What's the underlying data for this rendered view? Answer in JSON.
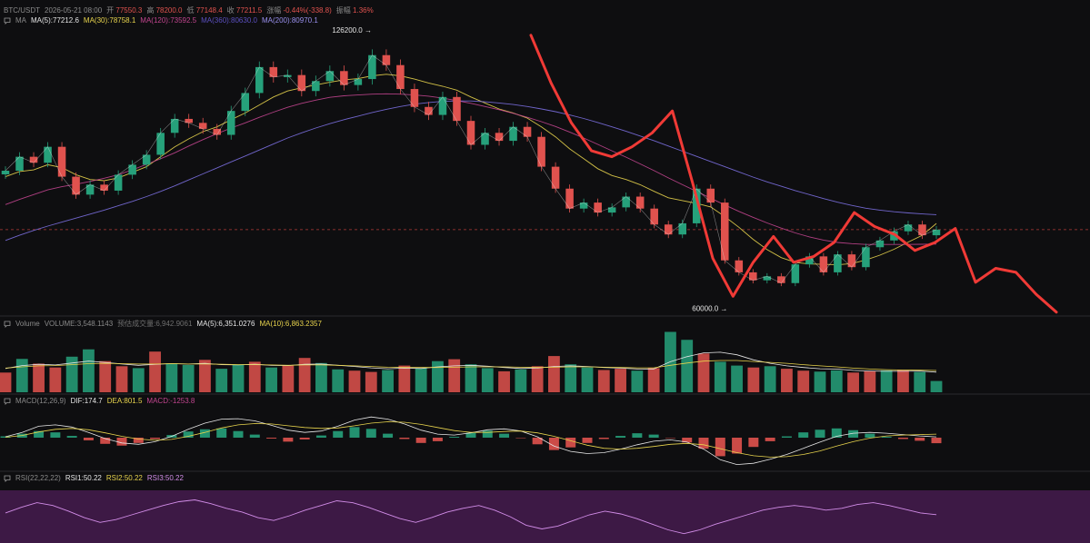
{
  "header": {
    "symbol": "BTC/USDT",
    "datetime": "2026-05-21 08:00",
    "open_label": "开",
    "open": "77550.3",
    "high_label": "高",
    "high": "78200.0",
    "low_label": "低",
    "low": "77148.4",
    "close_label": "收",
    "close": "77211.5",
    "change_label": "涨幅",
    "change": "-0.44%(-338.8)",
    "amp_label": "振幅",
    "amp": "1.36%"
  },
  "ma_legend": {
    "label": "MA",
    "ma5": "MA(5):77212.6",
    "ma30": "MA(30):78758.1",
    "ma120": "MA(120):73592.5",
    "ma360": "MA(360):80630.0",
    "ma200": "MA(200):80970.1"
  },
  "volume_legend": {
    "label": "Volume",
    "volume": "VOLUME:3,548.1143",
    "est": "预估成交量:6,942.9061",
    "ma5": "MA(5):6,351.0276",
    "ma10": "MA(10):6,863.2357"
  },
  "macd_legend": {
    "label": "MACD(12,26,9)",
    "dif": "DIF:174.7",
    "dea": "DEA:801.5",
    "macd": "MACD:-1253.8"
  },
  "rsi_legend": {
    "label": "RSI(22,22,22)",
    "rsi1": "RSI1:50.22",
    "rsi2": "RSI2:50.22",
    "rsi3": "RSI3:50.22"
  },
  "colors": {
    "background": "#0e0e10",
    "up": "#26a17b",
    "down": "#e0524e",
    "ma5": "#e6e6e6",
    "ma30": "#e8d44d",
    "ma120": "#c2458f",
    "ma200": "#7b6fe0",
    "drawing": "#f03a36",
    "rsi": "#d28de8",
    "rsi_fill": "#4a1d52"
  },
  "chart_data": [
    {
      "type": "line",
      "panel": "price",
      "annotations": [
        {
          "label": "126200.0 →",
          "value": 126200.0,
          "kind": "high"
        },
        {
          "label": "60000.0 →",
          "value": 60000.0,
          "kind": "low"
        }
      ],
      "series": [
        {
          "name": "Close",
          "values": [
            92000,
            95500,
            94000,
            98000,
            90500,
            86000,
            88500,
            87000,
            91000,
            93500,
            96000,
            101500,
            105000,
            104000,
            102500,
            101000,
            107000,
            111500,
            118000,
            115500,
            116000,
            112000,
            114500,
            117000,
            113500,
            115000,
            121000,
            118500,
            112500,
            108000,
            106000,
            110500,
            104500,
            98500,
            101500,
            99500,
            103000,
            100500,
            93000,
            87500,
            82500,
            84000,
            81500,
            82800,
            85500,
            82500,
            78500,
            76000,
            78800,
            87500,
            84000,
            69500,
            66500,
            64500,
            65500,
            63800,
            68500,
            70500,
            66500,
            71000,
            67800,
            72800,
            74500,
            76800,
            78500,
            75800,
            77211
          ]
        },
        {
          "name": "MA(30)",
          "values": [
            90500,
            91800,
            92200,
            93500,
            92800,
            91000,
            89800,
            89500,
            90200,
            91600,
            93000,
            95500,
            98000,
            100000,
            101800,
            103000,
            104800,
            106500,
            108500,
            110500,
            112000,
            112800,
            113500,
            114200,
            114800,
            115100,
            115800,
            116200,
            115800,
            115000,
            114000,
            113200,
            112200,
            110500,
            109000,
            107500,
            106500,
            105200,
            103000,
            100500,
            97500,
            95000,
            92500,
            90800,
            89800,
            88500,
            86800,
            85200,
            84500,
            83800,
            82900,
            80500,
            77800,
            74800,
            72200,
            70200,
            69000,
            68600,
            68500,
            68400,
            68700,
            69600,
            70800,
            72300,
            74100,
            75800,
            78758
          ]
        },
        {
          "name": "MA(120)",
          "values": [
            83500,
            84800,
            86000,
            87200,
            88000,
            88600,
            89300,
            90100,
            91000,
            92200,
            93600,
            95000,
            96500,
            98200,
            99800,
            101300,
            102700,
            104000,
            105400,
            106700,
            107900,
            108900,
            109700,
            110400,
            110800,
            111000,
            111200,
            111300,
            111200,
            111000,
            110700,
            110200,
            109600,
            108900,
            108100,
            107300,
            106400,
            105400,
            104300,
            103100,
            101700,
            100200,
            98600,
            97000,
            95400,
            93700,
            92000,
            90200,
            88500,
            86800,
            85100,
            83400,
            81800,
            80300,
            78900,
            77600,
            76400,
            75400,
            74600,
            74000,
            73700,
            73500,
            73500,
            73500,
            73500,
            73550,
            73592
          ]
        },
        {
          "name": "MA(200)",
          "values": [
            74500,
            75800,
            77000,
            78100,
            79100,
            80100,
            81100,
            82100,
            83200,
            84300,
            85500,
            86800,
            88200,
            89700,
            91200,
            92700,
            94200,
            95700,
            97200,
            98700,
            100200,
            101500,
            102700,
            103800,
            104800,
            105700,
            106600,
            107400,
            108100,
            108700,
            109100,
            109400,
            109500,
            109500,
            109300,
            109000,
            108600,
            108100,
            107500,
            106800,
            106000,
            105100,
            104100,
            103000,
            101900,
            100700,
            99500,
            98200,
            96900,
            95600,
            94300,
            93000,
            91700,
            90400,
            89200,
            88100,
            87000,
            86000,
            85000,
            84100,
            83300,
            82600,
            82100,
            81700,
            81400,
            81150,
            80970
          ]
        },
        {
          "name": "drawn path",
          "values": [
            null,
            null,
            null,
            null,
            null,
            null,
            null,
            null,
            null,
            null,
            null,
            null,
            null,
            null,
            null,
            null,
            null,
            null,
            null,
            null,
            null,
            null,
            null,
            null,
            null,
            null,
            126000,
            114000,
            104000,
            97000,
            95500,
            98000,
            101500,
            107000,
            89000,
            70000,
            60500,
            69000,
            75500,
            69000,
            70500,
            74000,
            81500,
            78000,
            76000,
            72000,
            74000,
            77500,
            64000,
            67500,
            66500,
            61000,
            56500
          ]
        }
      ],
      "ylim": [
        56000,
        128000
      ]
    },
    {
      "type": "bar",
      "panel": "volume",
      "series": [
        {
          "name": "VOLUME",
          "values": [
            6200,
            10500,
            9000,
            7800,
            11200,
            13500,
            9800,
            8200,
            7600,
            12800,
            9100,
            8600,
            10200,
            7400,
            8800,
            9600,
            7800,
            8400,
            10800,
            9200,
            7200,
            6800,
            6400,
            7000,
            8400,
            7600,
            9800,
            10400,
            8800,
            7600,
            6600,
            7200,
            8200,
            11400,
            8800,
            7800,
            7000,
            7400,
            6800,
            7600,
            19000,
            16500,
            12200,
            9600,
            8400,
            7800,
            8200,
            7400,
            6800,
            6500,
            6900,
            6200,
            6600,
            6900,
            7000,
            6400,
            3548
          ]
        },
        {
          "name": "MA(5)",
          "values": [
            7500,
            8400,
            8800,
            8600,
            9200,
            9800,
            9400,
            8900,
            8500,
            8800,
            9000,
            8900,
            9100,
            8700,
            8600,
            8800,
            8500,
            8400,
            8800,
            8900,
            8500,
            8100,
            7700,
            7400,
            7600,
            7500,
            8000,
            8300,
            8500,
            8200,
            7800,
            7500,
            7600,
            8100,
            8300,
            8100,
            7800,
            7600,
            7300,
            7300,
            9600,
            11200,
            12400,
            12600,
            11800,
            10200,
            9100,
            8300,
            7800,
            7400,
            7300,
            6900,
            6700,
            6600,
            6600,
            6700,
            6351
          ]
        },
        {
          "name": "MA(10)",
          "values": [
            7600,
            8000,
            8300,
            8400,
            8700,
            9000,
            9100,
            9000,
            8900,
            8900,
            9000,
            8900,
            8900,
            8800,
            8700,
            8700,
            8600,
            8500,
            8600,
            8600,
            8500,
            8300,
            8100,
            7900,
            7800,
            7800,
            7800,
            7900,
            8000,
            8000,
            8000,
            7900,
            7800,
            7900,
            8000,
            8000,
            7900,
            7800,
            7700,
            7700,
            8500,
            9200,
            9800,
            10000,
            10000,
            9700,
            9400,
            9100,
            8700,
            8300,
            8000,
            7600,
            7300,
            7100,
            7000,
            6950,
            6863
          ]
        }
      ]
    },
    {
      "type": "bar",
      "panel": "macd",
      "series": [
        {
          "name": "MACD",
          "values": [
            300,
            900,
            1500,
            1200,
            400,
            -600,
            -1400,
            -1800,
            -1200,
            -300,
            600,
            1400,
            1900,
            2100,
            1500,
            700,
            -200,
            -900,
            -400,
            500,
            1500,
            2400,
            2000,
            900,
            -300,
            -1200,
            -800,
            200,
            1100,
            1600,
            900,
            -100,
            -1500,
            -2800,
            -2200,
            -1200,
            -300,
            400,
            1000,
            700,
            -100,
            -1100,
            -2500,
            -4200,
            -3600,
            -2100,
            -800,
            300,
            1200,
            1800,
            2100,
            1700,
            900,
            200,
            -300,
            -700,
            -1254
          ]
        },
        {
          "name": "DIF",
          "values": [
            200,
            1200,
            2600,
            2900,
            2400,
            1200,
            -200,
            -1200,
            -1500,
            -900,
            300,
            1900,
            3300,
            4200,
            4300,
            3800,
            2800,
            1700,
            1200,
            1500,
            2600,
            4000,
            4700,
            4200,
            3100,
            1700,
            800,
            600,
            1100,
            1800,
            2000,
            1500,
            200,
            -1900,
            -3100,
            -3600,
            -3400,
            -2600,
            -1600,
            -800,
            -500,
            -1000,
            -2600,
            -5000,
            -6100,
            -5800,
            -4900,
            -3800,
            -2400,
            -1000,
            300,
            1000,
            1200,
            1000,
            700,
            400,
            175
          ]
        },
        {
          "name": "DEA",
          "values": [
            100,
            500,
            1300,
            1900,
            2100,
            1800,
            1100,
            300,
            -300,
            -600,
            -400,
            300,
            1200,
            2200,
            2900,
            3200,
            3100,
            2700,
            2300,
            2100,
            2200,
            2700,
            3300,
            3600,
            3500,
            3000,
            2300,
            1600,
            1200,
            1200,
            1400,
            1500,
            1100,
            300,
            -700,
            -1700,
            -2400,
            -2600,
            -2400,
            -2000,
            -1500,
            -1300,
            -1600,
            -2500,
            -3400,
            -4100,
            -4400,
            -4300,
            -3800,
            -3000,
            -1900,
            -900,
            -100,
            400,
            600,
            700,
            802
          ]
        }
      ]
    },
    {
      "type": "line",
      "panel": "rsi",
      "series": [
        {
          "name": "RSI(22)",
          "values": [
            52,
            58,
            63,
            60,
            54,
            47,
            42,
            45,
            50,
            55,
            60,
            64,
            66,
            62,
            57,
            53,
            47,
            44,
            49,
            55,
            60,
            65,
            63,
            58,
            52,
            46,
            42,
            47,
            53,
            57,
            60,
            55,
            48,
            39,
            35,
            38,
            44,
            50,
            54,
            51,
            46,
            40,
            34,
            30,
            34,
            40,
            45,
            50,
            55,
            58,
            60,
            58,
            55,
            57,
            61,
            63,
            60,
            56,
            52,
            50.22
          ]
        }
      ],
      "ylim": [
        20,
        80
      ]
    }
  ]
}
